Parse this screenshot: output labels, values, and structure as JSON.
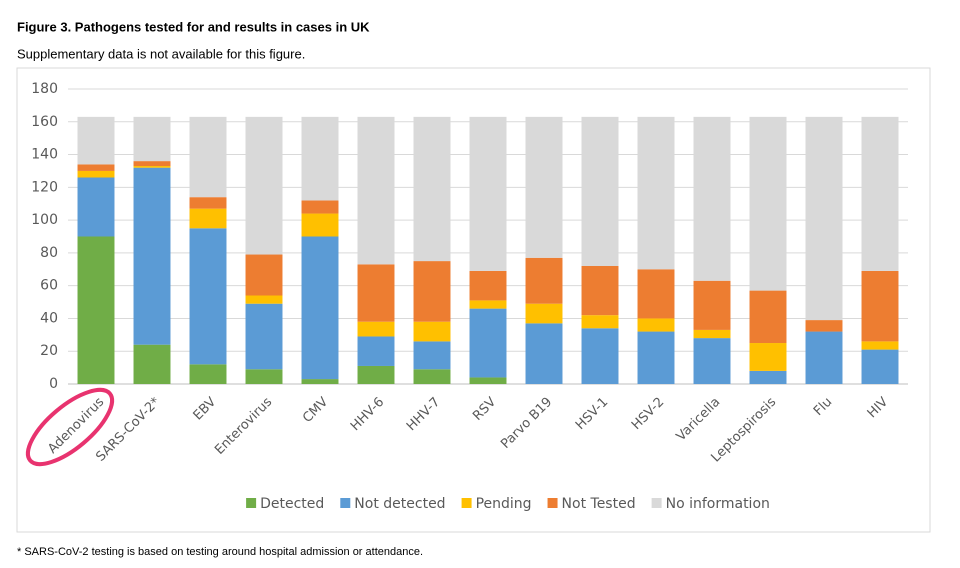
{
  "chart_data": {
    "type": "stacked-bar",
    "title": "Figure 3. Pathogens tested for and results in cases in UK",
    "subtitle": "Supplementary data is not available for this figure.",
    "footnote": "* SARS-CoV-2 testing is based on testing around hospital admission or attendance.",
    "categories": [
      "Adenovirus",
      "SARS-CoV-2*",
      "EBV",
      "Enterovirus",
      "CMV",
      "HHV-6",
      "HHV-7",
      "RSV",
      "Parvo B19",
      "HSV-1",
      "HSV-2",
      "Varicella",
      "Leptospirosis",
      "Flu",
      "HIV"
    ],
    "series": [
      {
        "name": "Detected",
        "color": "#70ad47",
        "values": [
          90,
          24,
          12,
          9,
          3,
          11,
          9,
          4,
          0,
          0,
          0,
          0,
          0,
          0,
          0
        ]
      },
      {
        "name": "Not detected",
        "color": "#5b9bd5",
        "values": [
          36,
          108,
          83,
          40,
          87,
          18,
          17,
          42,
          37,
          34,
          32,
          28,
          8,
          32,
          21
        ]
      },
      {
        "name": "Pending",
        "color": "#ffc000",
        "values": [
          4,
          1,
          12,
          5,
          14,
          9,
          12,
          5,
          12,
          8,
          8,
          5,
          17,
          0,
          5
        ]
      },
      {
        "name": "Not Tested",
        "color": "#ed7d31",
        "values": [
          4,
          3,
          7,
          25,
          8,
          35,
          37,
          18,
          28,
          30,
          30,
          30,
          32,
          7,
          43
        ]
      },
      {
        "name": "No information",
        "color": "#d9d9d9",
        "values": [
          29,
          27,
          49,
          84,
          51,
          90,
          88,
          94,
          86,
          91,
          93,
          100,
          106,
          124,
          94
        ]
      }
    ],
    "ylim": [
      0,
      180
    ],
    "yticks": [
      0,
      20,
      40,
      60,
      80,
      100,
      120,
      140,
      160,
      180
    ],
    "grid": true,
    "legend": "bottom"
  }
}
